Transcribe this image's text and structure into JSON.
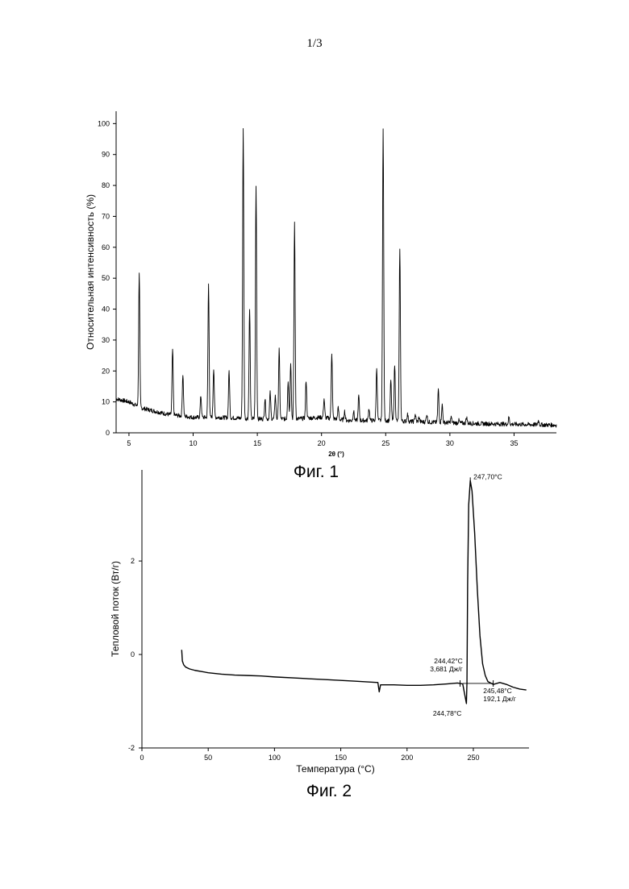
{
  "page": {
    "number": "1/3"
  },
  "figures": [
    {
      "caption": "Фиг. 1"
    },
    {
      "caption": "Фиг. 2"
    }
  ],
  "chart_data": [
    {
      "type": "line",
      "xlabel": "2θ (°)",
      "ylabel": "Относительная интенсивность (%)",
      "xlim": [
        4,
        38.3
      ],
      "ylim": [
        0,
        104
      ],
      "xticks": [
        5,
        10,
        15,
        20,
        25,
        30,
        35
      ],
      "yticks": [
        0,
        10,
        20,
        30,
        40,
        50,
        60,
        70,
        80,
        90,
        100
      ],
      "grid": false,
      "baseline": [
        [
          4,
          11
        ],
        [
          5,
          10
        ],
        [
          6,
          8
        ],
        [
          8,
          6
        ],
        [
          10,
          5
        ],
        [
          12,
          5
        ],
        [
          15,
          4.5
        ],
        [
          18,
          4.5
        ],
        [
          20,
          5
        ],
        [
          22,
          4
        ],
        [
          25,
          4
        ],
        [
          28,
          3.5
        ],
        [
          32,
          3
        ],
        [
          38.3,
          2.5
        ]
      ],
      "peaks": [
        {
          "x": 5.8,
          "y": 52
        },
        {
          "x": 8.4,
          "y": 27
        },
        {
          "x": 9.2,
          "y": 19
        },
        {
          "x": 10.6,
          "y": 12
        },
        {
          "x": 11.2,
          "y": 48
        },
        {
          "x": 11.6,
          "y": 21
        },
        {
          "x": 12.8,
          "y": 20
        },
        {
          "x": 13.9,
          "y": 98
        },
        {
          "x": 14.4,
          "y": 40
        },
        {
          "x": 14.9,
          "y": 80
        },
        {
          "x": 15.6,
          "y": 11
        },
        {
          "x": 16.0,
          "y": 13
        },
        {
          "x": 16.4,
          "y": 12
        },
        {
          "x": 16.7,
          "y": 27
        },
        {
          "x": 17.4,
          "y": 17
        },
        {
          "x": 17.6,
          "y": 23
        },
        {
          "x": 17.9,
          "y": 68
        },
        {
          "x": 18.8,
          "y": 17
        },
        {
          "x": 20.2,
          "y": 11
        },
        {
          "x": 20.8,
          "y": 26
        },
        {
          "x": 21.3,
          "y": 8
        },
        {
          "x": 21.8,
          "y": 7
        },
        {
          "x": 22.5,
          "y": 7
        },
        {
          "x": 22.9,
          "y": 12
        },
        {
          "x": 23.7,
          "y": 8
        },
        {
          "x": 24.3,
          "y": 21
        },
        {
          "x": 24.8,
          "y": 99
        },
        {
          "x": 25.4,
          "y": 17
        },
        {
          "x": 25.7,
          "y": 22
        },
        {
          "x": 26.1,
          "y": 60
        },
        {
          "x": 26.7,
          "y": 6
        },
        {
          "x": 27.3,
          "y": 6
        },
        {
          "x": 27.6,
          "y": 5
        },
        {
          "x": 28.2,
          "y": 6
        },
        {
          "x": 29.1,
          "y": 14
        },
        {
          "x": 29.4,
          "y": 9
        },
        {
          "x": 30.1,
          "y": 5
        },
        {
          "x": 30.7,
          "y": 4
        },
        {
          "x": 31.3,
          "y": 5
        },
        {
          "x": 34.6,
          "y": 5
        },
        {
          "x": 36.9,
          "y": 4
        }
      ]
    },
    {
      "type": "line",
      "xlabel": "Температура (°C)",
      "ylabel": "Тепловой поток (Вт/г)",
      "xlim": [
        0,
        292
      ],
      "ylim": [
        -2,
        3.95
      ],
      "xticks": [
        0,
        50,
        100,
        150,
        200,
        250
      ],
      "yticks": [
        -2,
        0,
        2
      ],
      "grid": false,
      "series": [
        {
          "points": [
            [
              30,
              0.1
            ],
            [
              30.5,
              -0.14
            ],
            [
              31.5,
              -0.22
            ],
            [
              33,
              -0.27
            ],
            [
              36,
              -0.31
            ],
            [
              40,
              -0.34
            ],
            [
              50,
              -0.39
            ],
            [
              60,
              -0.42
            ],
            [
              70,
              -0.44
            ],
            [
              80,
              -0.45
            ],
            [
              90,
              -0.46
            ],
            [
              100,
              -0.48
            ],
            [
              120,
              -0.51
            ],
            [
              140,
              -0.54
            ],
            [
              160,
              -0.57
            ],
            [
              178,
              -0.6
            ],
            [
              179,
              -0.8
            ],
            [
              180,
              -0.65
            ],
            [
              190,
              -0.65
            ],
            [
              200,
              -0.66
            ],
            [
              210,
              -0.66
            ],
            [
              220,
              -0.65
            ],
            [
              230,
              -0.63
            ],
            [
              238,
              -0.61
            ],
            [
              242,
              -0.63
            ],
            [
              244.78,
              -1.05
            ],
            [
              245.2,
              -0.6
            ],
            [
              245.7,
              1.5
            ],
            [
              246.5,
              3.2
            ],
            [
              247.7,
              3.72
            ],
            [
              249,
              3.5
            ],
            [
              251,
              2.6
            ],
            [
              253,
              1.4
            ],
            [
              255,
              0.4
            ],
            [
              257,
              -0.2
            ],
            [
              259,
              -0.45
            ],
            [
              261,
              -0.58
            ],
            [
              265,
              -0.64
            ],
            [
              270,
              -0.6
            ],
            [
              275,
              -0.64
            ],
            [
              280,
              -0.7
            ],
            [
              285,
              -0.74
            ],
            [
              290,
              -0.76
            ]
          ]
        }
      ],
      "annotations": [
        {
          "lines": [
            "247,70°C"
          ]
        },
        {
          "lines": [
            "244,42°C",
            "3,681 Дж/г"
          ]
        },
        {
          "lines": [
            "244,78°C"
          ]
        },
        {
          "lines": [
            "245,48°C",
            "192,1 Дж/г"
          ]
        }
      ]
    }
  ]
}
